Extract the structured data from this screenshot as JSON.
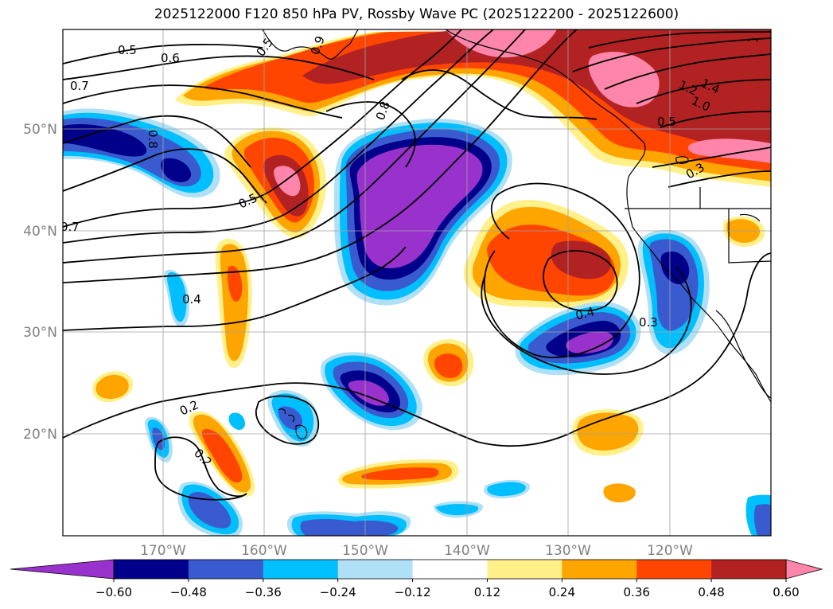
{
  "title": "2025122000 F120 850 hPa PV, Rossby Wave PC (2025122200 - 2025122600)",
  "map": {
    "lon_labels": [
      "170°W",
      "160°W",
      "150°W",
      "140°W",
      "130°W",
      "120°W"
    ],
    "lat_labels": [
      "50°N",
      "40°N",
      "30°N",
      "20°N"
    ],
    "contour_labels": [
      "0.5",
      "0.6",
      "0.7",
      "0.8",
      "0.9",
      "0.8",
      "0.5",
      "0.7",
      "0.4",
      "0.2",
      "0.2",
      "0.4",
      "0.3",
      "1.4",
      "1.2",
      "1.0",
      "0.5",
      "0.3",
      "0.5"
    ],
    "label_color": "#808080"
  },
  "colorbar": {
    "ticks": [
      "−0.60",
      "−0.48",
      "−0.36",
      "−0.24",
      "−0.12",
      "0.12",
      "0.24",
      "0.36",
      "0.48",
      "0.60"
    ],
    "colors": [
      "#9932cc",
      "#00008b",
      "#3a5bd0",
      "#00bfff",
      "#b0e0f6",
      "#ffffff",
      "#fff08a",
      "#ffa500",
      "#ff4500",
      "#b22222",
      "#ff85aa"
    ]
  }
}
